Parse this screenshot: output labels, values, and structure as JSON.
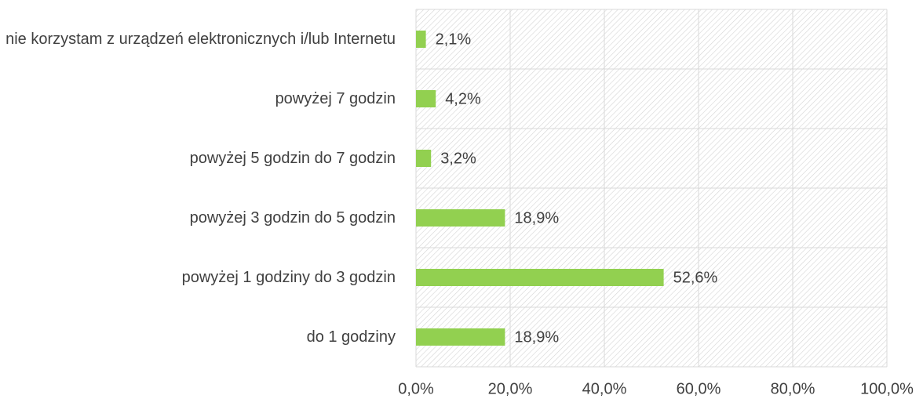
{
  "chart_data": {
    "type": "bar",
    "orientation": "horizontal",
    "categories": [
      "nie korzystam z urządzeń elektronicznych i/lub Internetu",
      "powyżej 7 godzin",
      "powyżej 5 godzin do 7 godzin",
      "powyżej 3 godzin do 5 godzin",
      "powyżej 1 godziny do 3 godzin",
      "do 1 godziny"
    ],
    "values": [
      2.1,
      4.2,
      3.2,
      18.9,
      52.6,
      18.9
    ],
    "value_labels": [
      "2,1%",
      "4,2%",
      "3,2%",
      "18,9%",
      "52,6%",
      "18,9%"
    ],
    "color": "#92d050",
    "xlim": [
      0,
      100
    ],
    "xticks": [
      {
        "value": 0,
        "label": "0,0%"
      },
      {
        "value": 20,
        "label": "20,0%"
      },
      {
        "value": 40,
        "label": "40,0%"
      },
      {
        "value": 60,
        "label": "60,0%"
      },
      {
        "value": 80,
        "label": "80,0%"
      },
      {
        "value": 100,
        "label": "100,0%"
      }
    ],
    "grid": true
  }
}
